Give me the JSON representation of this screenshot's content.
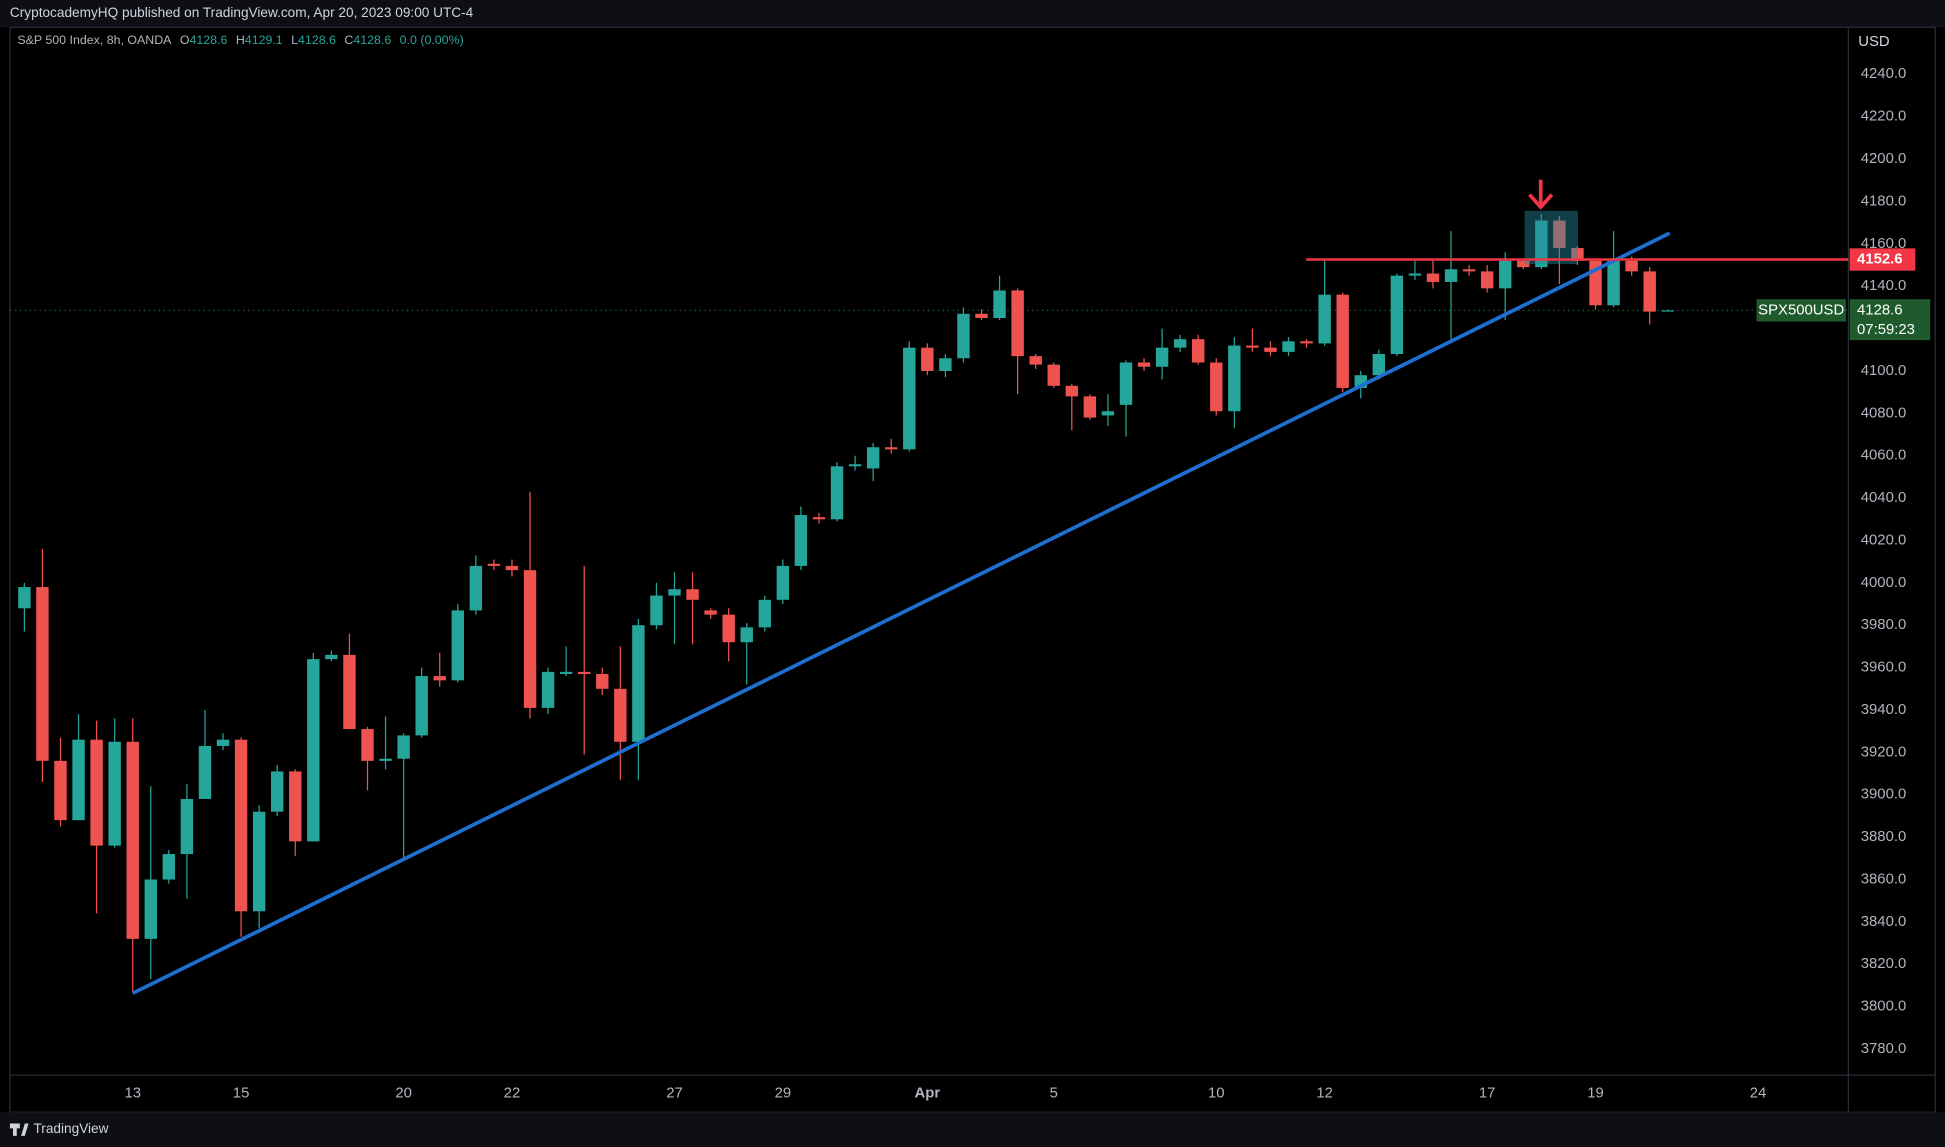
{
  "header": "CryptocademyHQ published on TradingView.com, Apr 20, 2023 09:00 UTC-4",
  "brand": "TradingView",
  "chart_data": {
    "type": "candlestick",
    "title": "S&P 500 Index, 8h, OANDA",
    "ohlc_legend": [
      {
        "key": "O",
        "value": "4128.6"
      },
      {
        "key": "H",
        "value": "4129.1"
      },
      {
        "key": "L",
        "value": "4128.6"
      },
      {
        "key": "C",
        "value": "4128.6"
      }
    ],
    "change": "0.0 (0.00%)",
    "currency": "USD",
    "symbol": "SPX500USD",
    "countdown": "07:59:23",
    "up_color": "#26a69a",
    "down_color": "#ef5350",
    "open": [
      3988,
      3998,
      3916,
      3888,
      3926,
      3876,
      3925,
      3832,
      3860,
      3872,
      3898,
      3923,
      3926,
      3845,
      3892,
      3911,
      3878,
      3964,
      3966,
      3931,
      3916,
      3917,
      3928,
      3956,
      3954,
      3987,
      4009,
      4008,
      4006,
      3941,
      3957,
      3958,
      3957,
      3950,
      3925,
      3980,
      3994,
      3997,
      3987,
      3985,
      3972,
      3979,
      3992,
      4008,
      4031,
      4030,
      4055,
      4054,
      4064,
      4063,
      4111,
      4100,
      4106,
      4127,
      4125,
      4138,
      4107,
      4103,
      4093,
      4088,
      4079,
      4084,
      4104,
      4102,
      4111,
      4115,
      4104,
      4081,
      4112,
      4111,
      4109,
      4114,
      4113,
      4136,
      4092,
      4098,
      4108,
      4145,
      4146,
      4142,
      4148,
      4147,
      4139,
      4152,
      4149,
      4171,
      4158,
      4152,
      4131,
      4152,
      4147,
      4128.6
    ],
    "high": [
      4000,
      4016,
      3927,
      3938,
      3935,
      3936,
      3936,
      3904,
      3874,
      3905,
      3940,
      3929,
      3927,
      3895,
      3914,
      3912,
      3967,
      3968,
      3976,
      3932,
      3937,
      3929,
      3960,
      3967,
      3990,
      4013,
      4011,
      4011,
      4043,
      3960,
      3970,
      4008,
      3960,
      3970,
      3983,
      4000,
      4005,
      4005,
      3988,
      3988,
      3981,
      3994,
      4011,
      4036,
      4033,
      4057,
      4060,
      4066,
      4068,
      4114,
      4113,
      4108,
      4130,
      4129,
      4145,
      4139,
      4108,
      4104,
      4094,
      4089,
      4089,
      4105,
      4106,
      4120,
      4117,
      4117,
      4106,
      4116,
      4120,
      4114,
      4116,
      4115,
      4152,
      4137,
      4100,
      4110,
      4146,
      4152,
      4152,
      4166,
      4150,
      4150,
      4156,
      4153,
      4174,
      4173,
      4159,
      4153,
      4166,
      4154,
      4149,
      4129.1
    ],
    "low": [
      3977,
      3906,
      3885,
      3888,
      3844,
      3875,
      3807,
      3813,
      3858,
      3851,
      3898,
      3921,
      3833,
      3837,
      3890,
      3871,
      3878,
      3963,
      3931,
      3902,
      3912,
      3870,
      3927,
      3951,
      3953,
      3985,
      4006,
      4003,
      3936,
      3938,
      3956,
      3919,
      3947,
      3907,
      3907,
      3978,
      3971,
      3971,
      3983,
      3963,
      3952,
      3977,
      3990,
      4006,
      4028,
      4029,
      4053,
      4048,
      4061,
      4062,
      4098,
      4097,
      4104,
      4124,
      4124,
      4089,
      4101,
      4092,
      4072,
      4077,
      4074,
      4069,
      4100,
      4096,
      4109,
      4103,
      4079,
      4073,
      4109,
      4107,
      4107,
      4111,
      4112,
      4090,
      4087,
      4096,
      4107,
      4143,
      4139,
      4115,
      4145,
      4137,
      4124,
      4148,
      4148,
      4141,
      4150,
      4129,
      4130,
      4145,
      4122,
      4128.6
    ],
    "close": [
      3998,
      3916,
      3888,
      3926,
      3876,
      3925,
      3832,
      3860,
      3872,
      3898,
      3923,
      3926,
      3845,
      3892,
      3911,
      3878,
      3964,
      3966,
      3931,
      3916,
      3917,
      3928,
      3956,
      3954,
      3987,
      4008,
      4008,
      4006,
      3941,
      3958,
      3958,
      3957,
      3950,
      3925,
      3980,
      3994,
      3997,
      3992,
      3985,
      3972,
      3979,
      3992,
      4008,
      4032,
      4030,
      4055,
      4056,
      4064,
      4063,
      4111,
      4100,
      4106,
      4127,
      4125,
      4138,
      4107,
      4103,
      4093,
      4088,
      4078,
      4081,
      4104,
      4102,
      4111,
      4115,
      4104,
      4081,
      4112,
      4111,
      4109,
      4114,
      4113,
      4136,
      4092,
      4098,
      4108,
      4145,
      4146,
      4142,
      4148,
      4147,
      4139,
      4152,
      4149,
      4171,
      4158,
      4152,
      4131,
      4152,
      4147,
      4128,
      4128.6
    ],
    "xlim": [
      -0.8,
      101.0
    ],
    "xticks": [
      {
        "value": 6,
        "label": "13"
      },
      {
        "value": 12,
        "label": "15"
      },
      {
        "value": 21,
        "label": "20"
      },
      {
        "value": 27,
        "label": "22"
      },
      {
        "value": 36,
        "label": "27"
      },
      {
        "value": 42,
        "label": "29"
      },
      {
        "value": 50,
        "label": "Apr"
      },
      {
        "value": 57,
        "label": "5"
      },
      {
        "value": 66,
        "label": "10"
      },
      {
        "value": 72,
        "label": "12"
      },
      {
        "value": 81,
        "label": "17"
      },
      {
        "value": 87,
        "label": "19"
      },
      {
        "value": 96,
        "label": "24"
      }
    ],
    "ylim": [
      3767.7,
      4262.2
    ],
    "yticks": [
      {
        "value": 3780,
        "label": "3780.0"
      },
      {
        "value": 3800,
        "label": "3800.0"
      },
      {
        "value": 3820,
        "label": "3820.0"
      },
      {
        "value": 3840,
        "label": "3840.0"
      },
      {
        "value": 3860,
        "label": "3860.0"
      },
      {
        "value": 3880,
        "label": "3880.0"
      },
      {
        "value": 3900,
        "label": "3900.0"
      },
      {
        "value": 3920,
        "label": "3920.0"
      },
      {
        "value": 3940,
        "label": "3940.0"
      },
      {
        "value": 3960,
        "label": "3960.0"
      },
      {
        "value": 3980,
        "label": "3980.0"
      },
      {
        "value": 4000,
        "label": "4000.0"
      },
      {
        "value": 4020,
        "label": "4020.0"
      },
      {
        "value": 4040,
        "label": "4040.0"
      },
      {
        "value": 4060,
        "label": "4060.0"
      },
      {
        "value": 4080,
        "label": "4080.0"
      },
      {
        "value": 4100,
        "label": "4100.0"
      },
      {
        "value": 4120,
        "label": "4120.0"
      },
      {
        "value": 4140,
        "label": "4140.0"
      },
      {
        "value": 4160,
        "label": "4160.0"
      },
      {
        "value": 4180,
        "label": "4180.0"
      },
      {
        "value": 4200,
        "label": "4200.0"
      },
      {
        "value": 4220,
        "label": "4220.0"
      },
      {
        "value": 4240,
        "label": "4240.0"
      }
    ],
    "horizontal_line": 4152.6,
    "last_price": 4128.6,
    "grid": false
  }
}
